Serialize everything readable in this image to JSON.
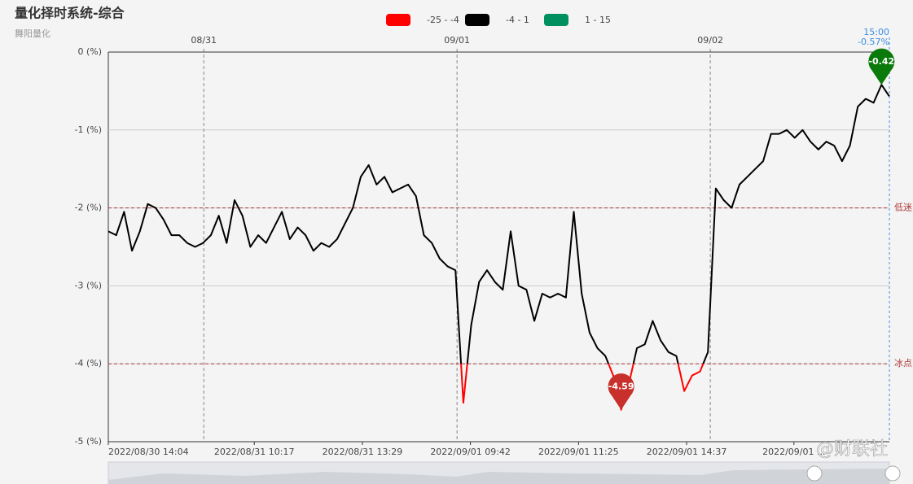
{
  "chart_data": {
    "type": "line",
    "title": "量化择时系统-综合",
    "subtitle": "舞阳量化",
    "watermark": "@财联社",
    "cursor": {
      "time": "15:00",
      "label": "-0.57%"
    },
    "legend": {
      "position": "top",
      "pieces": [
        {
          "min": -25,
          "max": -4,
          "label": "-25 - -4",
          "color": "#ff0000"
        },
        {
          "min": -4,
          "max": 1,
          "label": "-4 - 1",
          "color": "#000000"
        },
        {
          "min": 1,
          "max": 15,
          "label": "1 - 15",
          "color": "#009060"
        }
      ]
    },
    "x": [
      0,
      1,
      2,
      3,
      4,
      5,
      6,
      7,
      8,
      9,
      10,
      11,
      12,
      13,
      14,
      15,
      16,
      17,
      18,
      19,
      20,
      21,
      22,
      23,
      24,
      25,
      26,
      27,
      28,
      29,
      30,
      31,
      32,
      33,
      34,
      35,
      36,
      37,
      38,
      39,
      40,
      41,
      42,
      43,
      44,
      45,
      46,
      47,
      48,
      49,
      50,
      51,
      52,
      53,
      54,
      55,
      56,
      57,
      58,
      59,
      60,
      61,
      62,
      63,
      64,
      65,
      66,
      67,
      68,
      69,
      70,
      71,
      72,
      73,
      74,
      75,
      76,
      77,
      78,
      79,
      80,
      81,
      82,
      83,
      84,
      85,
      86,
      87,
      88,
      89,
      90,
      91,
      92,
      93,
      94,
      95,
      96,
      97,
      98,
      99
    ],
    "values": [
      -2.3,
      -2.35,
      -2.05,
      -2.55,
      -2.3,
      -1.95,
      -2.0,
      -2.15,
      -2.35,
      -2.35,
      -2.45,
      -2.5,
      -2.45,
      -2.35,
      -2.1,
      -2.45,
      -1.9,
      -2.1,
      -2.5,
      -2.35,
      -2.45,
      -2.25,
      -2.05,
      -2.4,
      -2.25,
      -2.35,
      -2.55,
      -2.45,
      -2.5,
      -2.4,
      -2.2,
      -2.0,
      -1.6,
      -1.45,
      -1.7,
      -1.6,
      -1.8,
      -1.75,
      -1.7,
      -1.85,
      -2.35,
      -2.45,
      -2.65,
      -2.75,
      -2.8,
      -4.5,
      -3.5,
      -2.95,
      -2.8,
      -2.95,
      -3.05,
      -2.3,
      -3.0,
      -3.05,
      -3.45,
      -3.1,
      -3.15,
      -3.1,
      -3.15,
      -2.05,
      -3.1,
      -3.6,
      -3.8,
      -3.9,
      -4.15,
      -4.59,
      -4.25,
      -3.8,
      -3.75,
      -3.45,
      -3.7,
      -3.85,
      -3.9,
      -4.35,
      -4.15,
      -4.1,
      -3.85,
      -1.75,
      -1.9,
      -2.0,
      -1.7,
      -1.6,
      -1.5,
      -1.4,
      -1.05,
      -1.05,
      -1.0,
      -1.1,
      -1.0,
      -1.15,
      -1.25,
      -1.15,
      -1.2,
      -1.4,
      -1.2,
      -0.7,
      -0.6,
      -0.65,
      -0.42,
      -0.57
    ],
    "xlim": [
      0,
      99
    ],
    "xticks": [
      {
        "value": 0,
        "label": "2022/08/30 14:04"
      },
      {
        "value": 18.5,
        "label": "2022/08/31 10:17"
      },
      {
        "value": 32.2,
        "label": "2022/08/31 13:29"
      },
      {
        "value": 45.9,
        "label": "2022/09/01 09:42"
      },
      {
        "value": 59.6,
        "label": "2022/09/01 11:25"
      },
      {
        "value": 73.3,
        "label": "2022/09/01 14:37"
      },
      {
        "value": 86.9,
        "label": "2022/09/01 ..."
      }
    ],
    "top_ticks": [
      {
        "value": 12.1,
        "label": "08/31"
      },
      {
        "value": 44.2,
        "label": "09/01"
      },
      {
        "value": 76.3,
        "label": "09/02"
      }
    ],
    "ylim": [
      -5,
      0
    ],
    "yticks": [
      {
        "value": 0,
        "label": "0 (%)"
      },
      {
        "value": -1,
        "label": "-1 (%)"
      },
      {
        "value": -2,
        "label": "-2 (%)"
      },
      {
        "value": -3,
        "label": "-3 (%)"
      },
      {
        "value": -4,
        "label": "-4 (%)"
      },
      {
        "value": -5,
        "label": "-5 (%)"
      }
    ],
    "grid": true,
    "mark_lines": [
      {
        "value": -2,
        "label": "低迷"
      },
      {
        "value": -4,
        "label": "冰点"
      }
    ],
    "mark_points": [
      {
        "value": -0.42,
        "color": "#0a7a0a"
      },
      {
        "value": -4.59,
        "color": "#c8302c"
      }
    ]
  }
}
